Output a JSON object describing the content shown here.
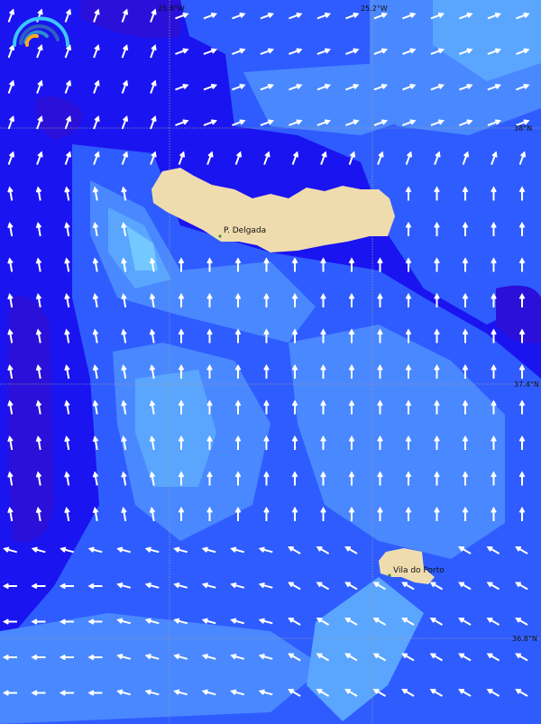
{
  "map": {
    "longitude_labels": [
      "25.8°W",
      "25.2°W"
    ],
    "latitude_labels": [
      "38°N",
      "37.4°N",
      "36.8°N"
    ],
    "places": [
      {
        "name": "P. Delgada"
      },
      {
        "name": "Vila do Porto"
      }
    ],
    "colors": {
      "deep": "#1a14f0",
      "darker": "#2a10d8",
      "mid": "#2f5cff",
      "light": "#4a88ff",
      "lighter": "#5aa6ff",
      "lightest": "#72c8ff",
      "land": "#efdcae",
      "arrow": "#ffffff",
      "arrow_strong": "#000000"
    },
    "logo_icon": "rainbow-arc-logo"
  }
}
